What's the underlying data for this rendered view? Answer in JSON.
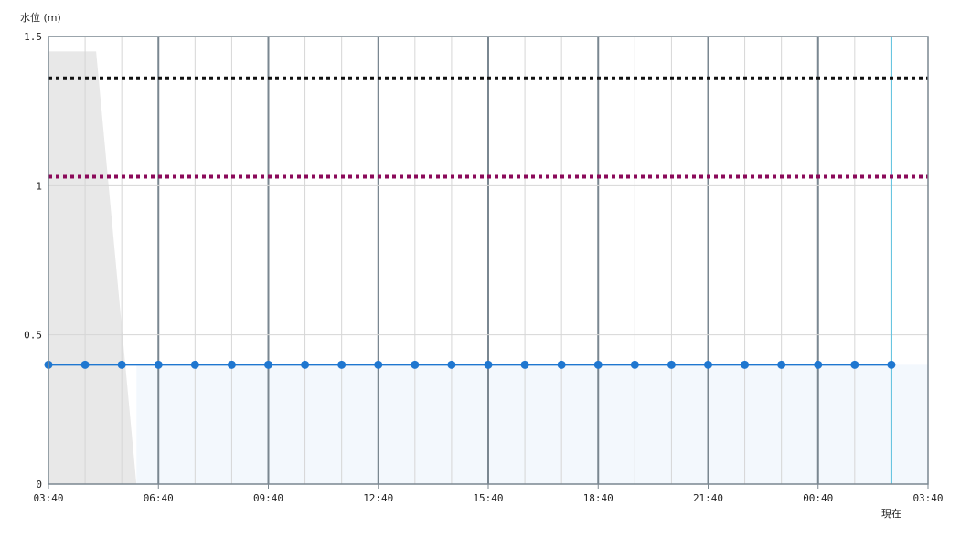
{
  "chart_data": {
    "type": "line",
    "ylabel": "水位 (m)",
    "ylim": [
      0,
      1.5
    ],
    "y_ticks": [
      {
        "value": 0,
        "label": "0"
      },
      {
        "value": 0.5,
        "label": "0.5"
      },
      {
        "value": 1,
        "label": "1"
      },
      {
        "value": 1.5,
        "label": "1.5"
      }
    ],
    "x_range_hours": [
      0,
      24
    ],
    "x_ticks": [
      {
        "hour": 0,
        "label": "03:40"
      },
      {
        "hour": 3,
        "label": "06:40"
      },
      {
        "hour": 6,
        "label": "09:40"
      },
      {
        "hour": 9,
        "label": "12:40"
      },
      {
        "hour": 12,
        "label": "15:40"
      },
      {
        "hour": 15,
        "label": "18:40"
      },
      {
        "hour": 18,
        "label": "21:40"
      },
      {
        "hour": 21,
        "label": "00:40"
      },
      {
        "hour": 24,
        "label": "03:40"
      }
    ],
    "now": {
      "hour": 23,
      "label": "現在",
      "color": "#5bc0de"
    },
    "series": [
      {
        "color": "#1f77d0",
        "x_hours": [
          0,
          1,
          2,
          3,
          4,
          5,
          6,
          7,
          8,
          9,
          10,
          11,
          12,
          13,
          14,
          15,
          16,
          17,
          18,
          19,
          20,
          21,
          22,
          23
        ],
        "values": [
          0.4,
          0.4,
          0.4,
          0.4,
          0.4,
          0.4,
          0.4,
          0.4,
          0.4,
          0.4,
          0.4,
          0.4,
          0.4,
          0.4,
          0.4,
          0.4,
          0.4,
          0.4,
          0.4,
          0.4,
          0.4,
          0.4,
          0.4,
          0.4
        ]
      }
    ],
    "thresholds": [
      {
        "value": 1.36,
        "color": "#111111",
        "style": "dotted"
      },
      {
        "value": 1.03,
        "color": "#8b0a5a",
        "style": "dotted"
      }
    ],
    "background_area": {
      "color": "#e8e8e8",
      "points": [
        [
          0,
          1.45
        ],
        [
          1.3,
          1.45
        ],
        [
          2.4,
          0
        ]
      ]
    },
    "current_area": {
      "color": "#f3f8fd",
      "value": 0.4
    }
  }
}
